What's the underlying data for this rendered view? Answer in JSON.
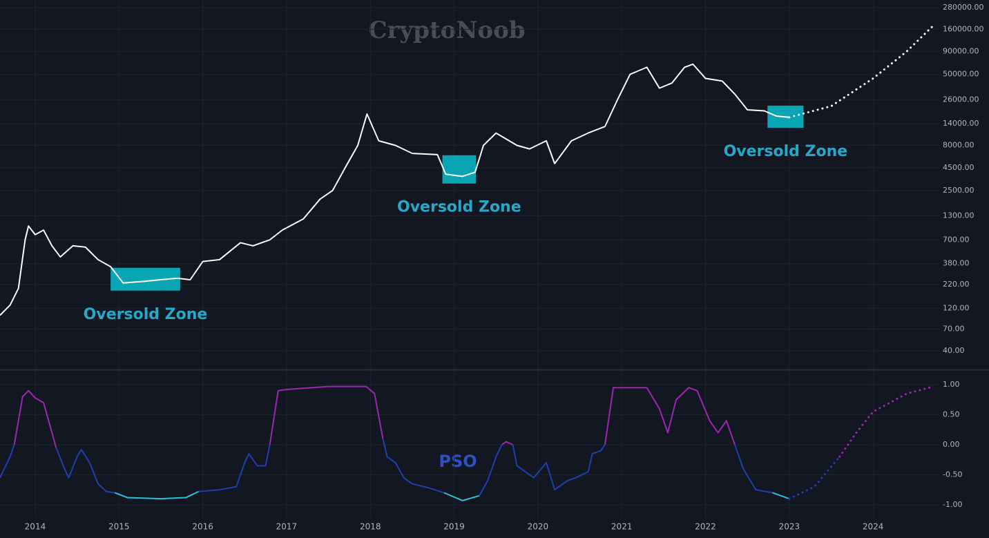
{
  "chart_data": [
    {
      "type": "line",
      "log_scale": true,
      "grid": true,
      "watermark": "CryptoNoob",
      "xlim": [
        2013.58,
        2024.79
      ],
      "ylim": [
        24.7,
        340000
      ],
      "yticks": [
        {
          "value": 280000,
          "label": "280000.00"
        },
        {
          "value": 160000,
          "label": "160000.00"
        },
        {
          "value": 90000,
          "label": "90000.00"
        },
        {
          "value": 50000,
          "label": "50000.00"
        },
        {
          "value": 26000,
          "label": "26000.00"
        },
        {
          "value": 14000,
          "label": "14000.00"
        },
        {
          "value": 8000,
          "label": "8000.00"
        },
        {
          "value": 4500,
          "label": "4500.00"
        },
        {
          "value": 2500,
          "label": "2500.00"
        },
        {
          "value": 1300,
          "label": "1300.00"
        },
        {
          "value": 700,
          "label": "700.00"
        },
        {
          "value": 380,
          "label": "380.00"
        },
        {
          "value": 220,
          "label": "220.00"
        },
        {
          "value": 120,
          "label": "120.00"
        },
        {
          "value": 70,
          "label": "70.00"
        },
        {
          "value": 40,
          "label": "40.00"
        }
      ],
      "series": [
        {
          "color": "#ffffff",
          "style": "solid",
          "x": [
            2013.58,
            2013.7,
            2013.8,
            2013.88,
            2013.92,
            2014.0,
            2014.1,
            2014.2,
            2014.3,
            2014.45,
            2014.6,
            2014.75,
            2014.9,
            2015.05,
            2015.3,
            2015.5,
            2015.7,
            2015.85,
            2016.0,
            2016.2,
            2016.45,
            2016.6,
            2016.8,
            2016.95,
            2017.2,
            2017.4,
            2017.55,
            2017.7,
            2017.85,
            2017.96,
            2018.1,
            2018.3,
            2018.5,
            2018.8,
            2018.9,
            2019.1,
            2019.25,
            2019.35,
            2019.5,
            2019.75,
            2019.9,
            2020.1,
            2020.2,
            2020.4,
            2020.6,
            2020.8,
            2020.95,
            2021.1,
            2021.3,
            2021.45,
            2021.6,
            2021.75,
            2021.85,
            2022.0,
            2022.2,
            2022.35,
            2022.5,
            2022.7,
            2022.85,
            2023.0
          ],
          "values": [
            100,
            130,
            200,
            700,
            1000,
            800,
            900,
            600,
            450,
            600,
            580,
            420,
            350,
            230,
            240,
            250,
            260,
            250,
            400,
            420,
            650,
            600,
            700,
            900,
            1200,
            2000,
            2500,
            4500,
            8000,
            18000,
            9000,
            8000,
            6500,
            6300,
            3800,
            3600,
            4000,
            8000,
            11000,
            8000,
            7300,
            9000,
            5000,
            9000,
            11000,
            13000,
            26000,
            50000,
            60000,
            35000,
            40000,
            60000,
            65000,
            45000,
            42000,
            30000,
            20000,
            19500,
            17000,
            16500
          ]
        },
        {
          "color": "#ffffff",
          "style": "dotted",
          "x": [
            2023.0,
            2023.5,
            2024.0,
            2024.4,
            2024.72
          ],
          "values": [
            16500,
            22000,
            45000,
            90000,
            176000
          ]
        }
      ],
      "annotations": [
        {
          "text": "Oversold Zone",
          "xrange": [
            2014.9,
            2015.73
          ],
          "yrange": [
            189,
            340
          ]
        },
        {
          "text": "Oversold Zone",
          "xrange": [
            2018.86,
            2019.26
          ],
          "yrange": [
            2990,
            6200
          ]
        },
        {
          "text": "Oversold Zone",
          "xrange": [
            2022.74,
            2023.17
          ],
          "yrange": [
            12600,
            22300
          ]
        }
      ],
      "annotation_box_color": "#0aa5b5",
      "annotation_text_color": "#26a8c8"
    },
    {
      "type": "line",
      "grid": true,
      "label": "PSO",
      "xlim": [
        2013.58,
        2024.79
      ],
      "ylim": [
        -1.22,
        1.23
      ],
      "xticks": [
        2014,
        2015,
        2016,
        2017,
        2018,
        2019,
        2020,
        2021,
        2022,
        2023,
        2024
      ],
      "yticks": [
        {
          "value": 1,
          "label": "1.00"
        },
        {
          "value": 0.5,
          "label": "0.50"
        },
        {
          "value": 0,
          "label": "0.00"
        },
        {
          "value": -0.5,
          "label": "-0.50"
        },
        {
          "value": -1,
          "label": "-1.00"
        }
      ],
      "thresholds": [
        -0.8,
        0
      ],
      "colors": {
        "low": "#26c6da",
        "mid": "#1e40af",
        "high": "#9c27b0"
      },
      "label_color": "#2f4fc4",
      "series": [
        {
          "style": "solid",
          "x": [
            2013.58,
            2013.7,
            2013.75,
            2013.85,
            2013.92,
            2014.0,
            2014.1,
            2014.2,
            2014.25,
            2014.35,
            2014.4,
            2014.5,
            2014.55,
            2014.65,
            2014.75,
            2014.85,
            2014.95,
            2015.1,
            2015.5,
            2015.8,
            2015.95,
            2016.2,
            2016.4,
            2016.5,
            2016.55,
            2016.65,
            2016.75,
            2016.8,
            2016.9,
            2017.0,
            2017.5,
            2017.95,
            2018.05,
            2018.15,
            2018.2,
            2018.3,
            2018.4,
            2018.5,
            2018.7,
            2018.88,
            2019.1,
            2019.3,
            2019.4,
            2019.5,
            2019.57,
            2019.62,
            2019.7,
            2019.75,
            2019.85,
            2019.95,
            2020.1,
            2020.2,
            2020.35,
            2020.45,
            2020.6,
            2020.65,
            2020.75,
            2020.8,
            2020.9,
            2021.0,
            2021.3,
            2021.45,
            2021.55,
            2021.65,
            2021.8,
            2021.9,
            2022.05,
            2022.15,
            2022.25,
            2022.35,
            2022.45,
            2022.6,
            2022.8,
            2023.0
          ],
          "values": [
            -0.55,
            -0.2,
            0.0,
            0.8,
            0.9,
            0.78,
            0.7,
            0.2,
            -0.05,
            -0.4,
            -0.55,
            -0.2,
            -0.08,
            -0.3,
            -0.65,
            -0.78,
            -0.8,
            -0.88,
            -0.9,
            -0.88,
            -0.78,
            -0.75,
            -0.7,
            -0.3,
            -0.15,
            -0.35,
            -0.35,
            0.0,
            0.9,
            0.92,
            0.97,
            0.97,
            0.85,
            0.1,
            -0.2,
            -0.3,
            -0.55,
            -0.65,
            -0.72,
            -0.8,
            -0.93,
            -0.85,
            -0.6,
            -0.2,
            0.0,
            0.05,
            0.0,
            -0.35,
            -0.45,
            -0.55,
            -0.3,
            -0.75,
            -0.6,
            -0.55,
            -0.45,
            -0.15,
            -0.1,
            0.0,
            0.95,
            0.95,
            0.95,
            0.6,
            0.2,
            0.75,
            0.95,
            0.9,
            0.4,
            0.2,
            0.4,
            0.0,
            -0.4,
            -0.75,
            -0.8,
            -0.9
          ]
        },
        {
          "style": "dotted",
          "x": [
            2023.0,
            2023.3,
            2023.6,
            2023.8,
            2024.0,
            2024.4,
            2024.72
          ],
          "values": [
            -0.9,
            -0.7,
            -0.2,
            0.2,
            0.55,
            0.85,
            0.97
          ]
        }
      ]
    }
  ]
}
